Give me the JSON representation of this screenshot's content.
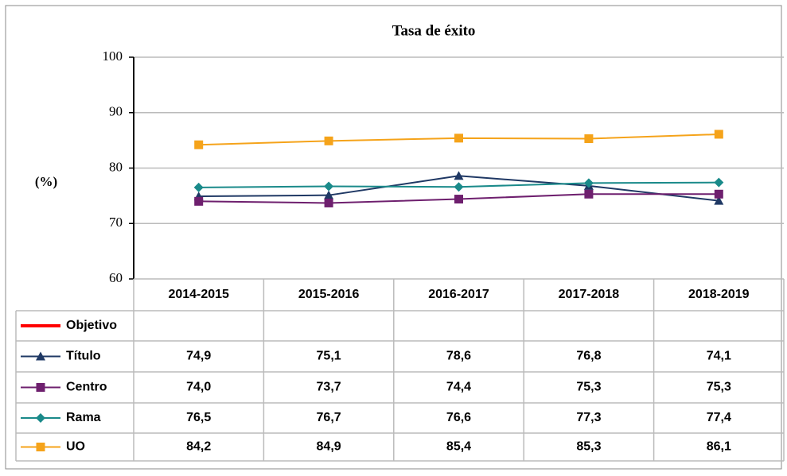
{
  "chart_data": {
    "type": "line",
    "title": "Tasa de éxito",
    "y_label": "(%)",
    "categories": [
      "2014-2015",
      "2015-2016",
      "2016-2017",
      "2017-2018",
      "2018-2019"
    ],
    "series": [
      {
        "name": "Objetivo",
        "color": "#ff0000",
        "marker": "none",
        "values": [
          null,
          null,
          null,
          null,
          null
        ]
      },
      {
        "name": "Título",
        "color": "#1f3864",
        "marker": "triangle",
        "values": [
          74.9,
          75.1,
          78.6,
          76.8,
          74.1
        ],
        "value_labels": [
          "74,9",
          "75,1",
          "78,6",
          "76,8",
          "74,1"
        ]
      },
      {
        "name": "Centro",
        "color": "#6e1f6e",
        "marker": "square",
        "values": [
          74.0,
          73.7,
          74.4,
          75.3,
          75.3
        ],
        "value_labels": [
          "74,0",
          "73,7",
          "74,4",
          "75,3",
          "75,3"
        ]
      },
      {
        "name": "Rama",
        "color": "#1a8a8a",
        "marker": "diamond",
        "values": [
          76.5,
          76.7,
          76.6,
          77.3,
          77.4
        ],
        "value_labels": [
          "76,5",
          "76,7",
          "76,6",
          "77,3",
          "77,4"
        ]
      },
      {
        "name": "UO",
        "color": "#f5a31a",
        "marker": "square",
        "values": [
          84.2,
          84.9,
          85.4,
          85.3,
          86.1
        ],
        "value_labels": [
          "84,2",
          "84,9",
          "85,4",
          "85,3",
          "86,1"
        ]
      }
    ],
    "ylim": [
      60,
      100
    ],
    "yticks": [
      60,
      70,
      80,
      90,
      100
    ],
    "grid": true,
    "data_table": true
  }
}
